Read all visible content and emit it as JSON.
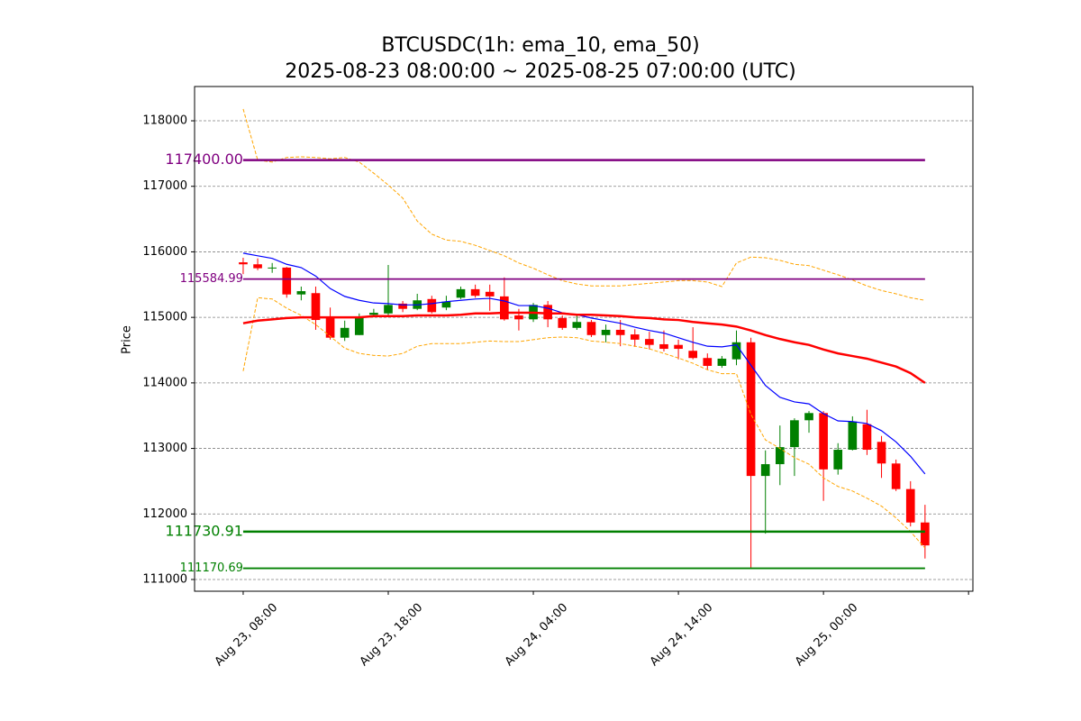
{
  "chart_data": {
    "type": "candlestick",
    "title": "BTCUSDC(1h: ema_10, ema_50)",
    "subtitle": "2025-08-23 08:00:00 ~ 2025-08-25 07:00:00 (UTC)",
    "y_label": "Price",
    "xlim": [
      -3.35,
      50.3
    ],
    "xticks": [
      {
        "value": 0,
        "label": "Aug 23, 08:00"
      },
      {
        "value": 10,
        "label": "Aug 23, 18:00"
      },
      {
        "value": 20,
        "label": "Aug 24, 04:00"
      },
      {
        "value": 30,
        "label": "Aug 24, 14:00"
      },
      {
        "value": 40,
        "label": "Aug 25, 00:00"
      },
      {
        "value": 50,
        "label": null
      }
    ],
    "ylim": [
      110821,
      118523
    ],
    "yticks": [
      111000,
      112000,
      113000,
      114000,
      115000,
      116000,
      117000,
      118000
    ],
    "grid": true,
    "up_color": "green",
    "down_color": "red",
    "x": [
      0,
      1,
      2,
      3,
      4,
      5,
      6,
      7,
      8,
      9,
      10,
      11,
      12,
      13,
      14,
      15,
      16,
      17,
      18,
      19,
      20,
      21,
      22,
      23,
      24,
      25,
      26,
      27,
      28,
      29,
      30,
      31,
      32,
      33,
      34,
      35,
      36,
      37,
      38,
      39,
      40,
      41,
      42,
      43,
      44,
      45,
      46,
      47
    ],
    "open": [
      115840,
      115810,
      115750,
      115760,
      115350,
      115370,
      114990,
      114690,
      114730,
      115040,
      115060,
      115210,
      115130,
      115280,
      115150,
      115300,
      115430,
      115390,
      115320,
      115030,
      114970,
      115190,
      114990,
      114840,
      114930,
      114730,
      114810,
      114740,
      114670,
      114590,
      114580,
      114490,
      114380,
      114260,
      114360,
      114620,
      112580,
      112760,
      113020,
      113430,
      113540,
      112680,
      112980,
      113370,
      113100,
      112770,
      112380,
      111870
    ],
    "high": [
      115910,
      115900,
      115830,
      115770,
      115470,
      115470,
      115150,
      114950,
      115060,
      115130,
      115800,
      115250,
      115360,
      115330,
      115330,
      115470,
      115500,
      115500,
      115610,
      115130,
      115220,
      115250,
      115030,
      115040,
      114960,
      114890,
      114960,
      114820,
      114780,
      114800,
      114660,
      114850,
      114450,
      114410,
      114800,
      114690,
      112970,
      113350,
      113460,
      113570,
      113570,
      113080,
      113490,
      113590,
      113190,
      112830,
      112500,
      112140
    ],
    "low": [
      115660,
      115720,
      115680,
      115300,
      115260,
      114810,
      114660,
      114640,
      114730,
      115000,
      115030,
      115080,
      115110,
      115060,
      115110,
      115280,
      115300,
      115100,
      114950,
      114800,
      114930,
      114850,
      114810,
      114810,
      114700,
      114620,
      114560,
      114550,
      114510,
      114480,
      114360,
      114360,
      114200,
      114230,
      114270,
      111180,
      111700,
      112440,
      112580,
      113240,
      112200,
      112600,
      112970,
      112900,
      112550,
      112350,
      111810,
      111320
    ],
    "close": [
      115810,
      115750,
      115760,
      115350,
      115400,
      114960,
      114690,
      114840,
      115000,
      115070,
      115190,
      115130,
      115260,
      115080,
      115240,
      115430,
      115330,
      115320,
      114970,
      114970,
      115190,
      114970,
      114840,
      114930,
      114730,
      114810,
      114730,
      114660,
      114580,
      114520,
      114520,
      114380,
      114260,
      114370,
      114620,
      112580,
      112760,
      113020,
      113430,
      113540,
      112680,
      112980,
      113410,
      112980,
      112770,
      112380,
      111870,
      111520
    ],
    "lines": [
      {
        "color": "orange",
        "dashed": true,
        "width": 1,
        "values": [
          118180,
          117400,
          117370,
          117440,
          117450,
          117440,
          117420,
          117440,
          117370,
          117200,
          117020,
          116820,
          116470,
          116270,
          116180,
          116160,
          116100,
          116020,
          115940,
          115830,
          115750,
          115650,
          115560,
          115510,
          115480,
          115480,
          115480,
          115500,
          115520,
          115540,
          115560,
          115560,
          115540,
          115470,
          115830,
          115920,
          115910,
          115870,
          115810,
          115790,
          115720,
          115650,
          115570,
          115480,
          115410,
          115360,
          115300,
          115260
        ]
      },
      {
        "color": "orange",
        "dashed": true,
        "width": 1,
        "values": [
          114180,
          115300,
          115280,
          115140,
          115030,
          114890,
          114710,
          114530,
          114450,
          114420,
          114410,
          114450,
          114560,
          114600,
          114600,
          114600,
          114620,
          114640,
          114630,
          114630,
          114660,
          114690,
          114700,
          114690,
          114640,
          114620,
          114600,
          114560,
          114520,
          114450,
          114380,
          114300,
          114200,
          114140,
          114140,
          113520,
          113130,
          113000,
          112860,
          112760,
          112550,
          112420,
          112350,
          112240,
          112120,
          111940,
          111730,
          111480
        ]
      },
      {
        "color": "blue",
        "dashed": false,
        "width": 1.2,
        "values": [
          115980,
          115940,
          115900,
          115810,
          115760,
          115630,
          115440,
          115320,
          115260,
          115220,
          115210,
          115190,
          115190,
          115210,
          115240,
          115260,
          115280,
          115290,
          115250,
          115180,
          115180,
          115140,
          115070,
          115040,
          114990,
          114950,
          114910,
          114850,
          114800,
          114760,
          114690,
          114620,
          114560,
          114550,
          114580,
          114270,
          113960,
          113780,
          113710,
          113680,
          113530,
          113420,
          113410,
          113380,
          113270,
          113100,
          112880,
          112610
        ]
      },
      {
        "color": "red",
        "dashed": false,
        "width": 2.5,
        "values": [
          114910,
          114950,
          114970,
          114990,
          115000,
          115000,
          115000,
          115000,
          115000,
          115020,
          115020,
          115020,
          115030,
          115030,
          115030,
          115040,
          115060,
          115060,
          115070,
          115070,
          115070,
          115060,
          115060,
          115040,
          115040,
          115030,
          115020,
          115000,
          114990,
          114970,
          114960,
          114930,
          114910,
          114890,
          114860,
          114800,
          114730,
          114670,
          114620,
          114580,
          114510,
          114450,
          114410,
          114370,
          114310,
          114250,
          114150,
          114000
        ]
      }
    ],
    "hlines": [
      {
        "value": 117400,
        "label": "117400.00",
        "color": "purple",
        "width": 2.5,
        "font_size": 16
      },
      {
        "value": 115584.99,
        "label": "115584.99",
        "color": "purple",
        "width": 1.8,
        "font_size": 13
      },
      {
        "value": 111730.91,
        "label": "111730.91",
        "color": "green",
        "width": 2.5,
        "font_size": 16
      },
      {
        "value": 111170.69,
        "label": "111170.69",
        "color": "green",
        "width": 1.8,
        "font_size": 13
      }
    ]
  }
}
